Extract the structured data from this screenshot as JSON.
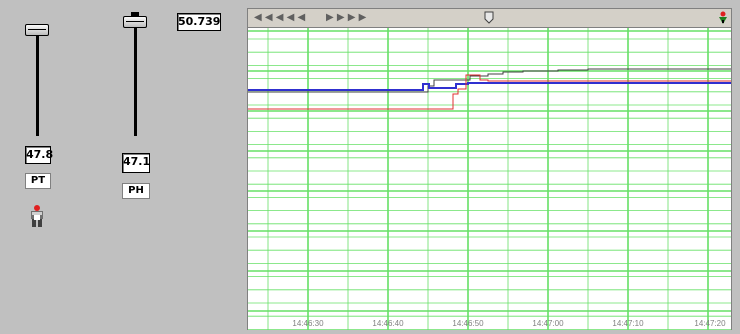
{
  "window": {
    "background": "#c0c0c0"
  },
  "header_value": "50.739",
  "sliders": [
    {
      "tag": "PT",
      "value": "47.8"
    },
    {
      "tag": "PH",
      "value": "47.1"
    }
  ],
  "icons": {
    "operator": "operator-icon",
    "pen": "trend-pen-icon",
    "slider": "scroll-slider-icon"
  },
  "toolbar": {
    "left_arrows": "◀ ◀ ◀ ◀ ◀",
    "right_arrows": "▶ ▶ ▶ ▶"
  },
  "trend": {
    "grid_color": "#66e066",
    "x_ticks": [
      "14:46:30",
      "14:46:40",
      "14:46:50",
      "14:47:00",
      "14:47:10",
      "14:47:20"
    ],
    "pens": [
      {
        "color": "#404040",
        "label": "black"
      },
      {
        "color": "#3030d0",
        "label": "blue"
      },
      {
        "color": "#e03030",
        "label": "red"
      }
    ]
  }
}
